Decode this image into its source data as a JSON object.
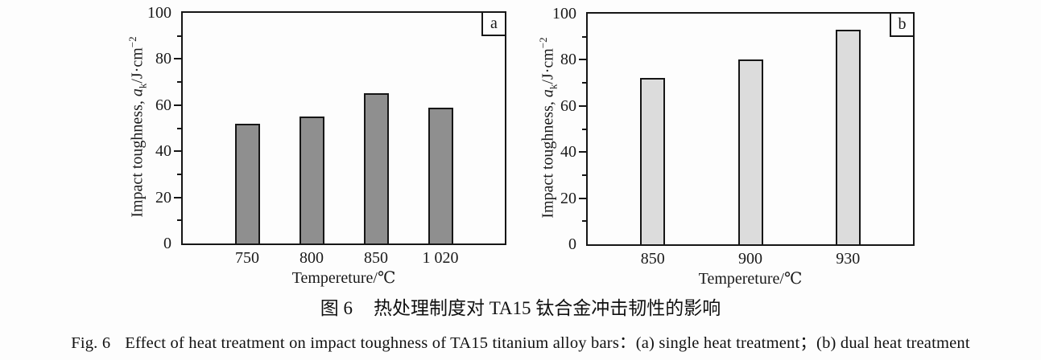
{
  "figure": {
    "caption_zh": {
      "label": "图 6",
      "text": "热处理制度对 TA15 钛合金冲击韧性的影响"
    },
    "caption_en": {
      "label": "Fig. 6",
      "text": "Effect of heat treatment on impact toughness of TA15 titanium alloy bars：(a) single heat treatment；(b) dual heat treatment"
    }
  },
  "chart_data": [
    {
      "type": "bar",
      "panel_label": "a",
      "categories": [
        "750",
        "800",
        "850",
        "1 020"
      ],
      "values": [
        52,
        55,
        65,
        59
      ],
      "bar_color": "#8f8f8f",
      "bar_border_color": "#161616",
      "xlabel": "Tempereture/℃",
      "ylabel": "Impact toughness, aₖ/J·cm⁻²",
      "ylabel_parts": {
        "prefix": "Impact toughness, ",
        "symbol": "a",
        "subscript": "k",
        "unit": "/J·cm",
        "superscript": "−2"
      },
      "ylim": [
        0,
        100
      ],
      "yticks_major": [
        0,
        20,
        40,
        60,
        80,
        100
      ],
      "yticks_minor": [
        10,
        30,
        50,
        70,
        90
      ],
      "grid": false,
      "legend": "none"
    },
    {
      "type": "bar",
      "panel_label": "b",
      "categories": [
        "850",
        "900",
        "930"
      ],
      "values": [
        72,
        80,
        93
      ],
      "bar_color": "#dcdcdc",
      "bar_border_color": "#161616",
      "xlabel": "Tempereture/℃",
      "ylabel": "Impact toughness, aₖ/J·cm⁻²",
      "ylabel_parts": {
        "prefix": "Impact toughness, ",
        "symbol": "a",
        "subscript": "k",
        "unit": "/J·cm",
        "superscript": "−2"
      },
      "ylim": [
        0,
        100
      ],
      "yticks_major": [
        0,
        20,
        40,
        60,
        80,
        100
      ],
      "yticks_minor": [
        10,
        30,
        50,
        70,
        90
      ],
      "grid": false,
      "legend": "none"
    }
  ]
}
